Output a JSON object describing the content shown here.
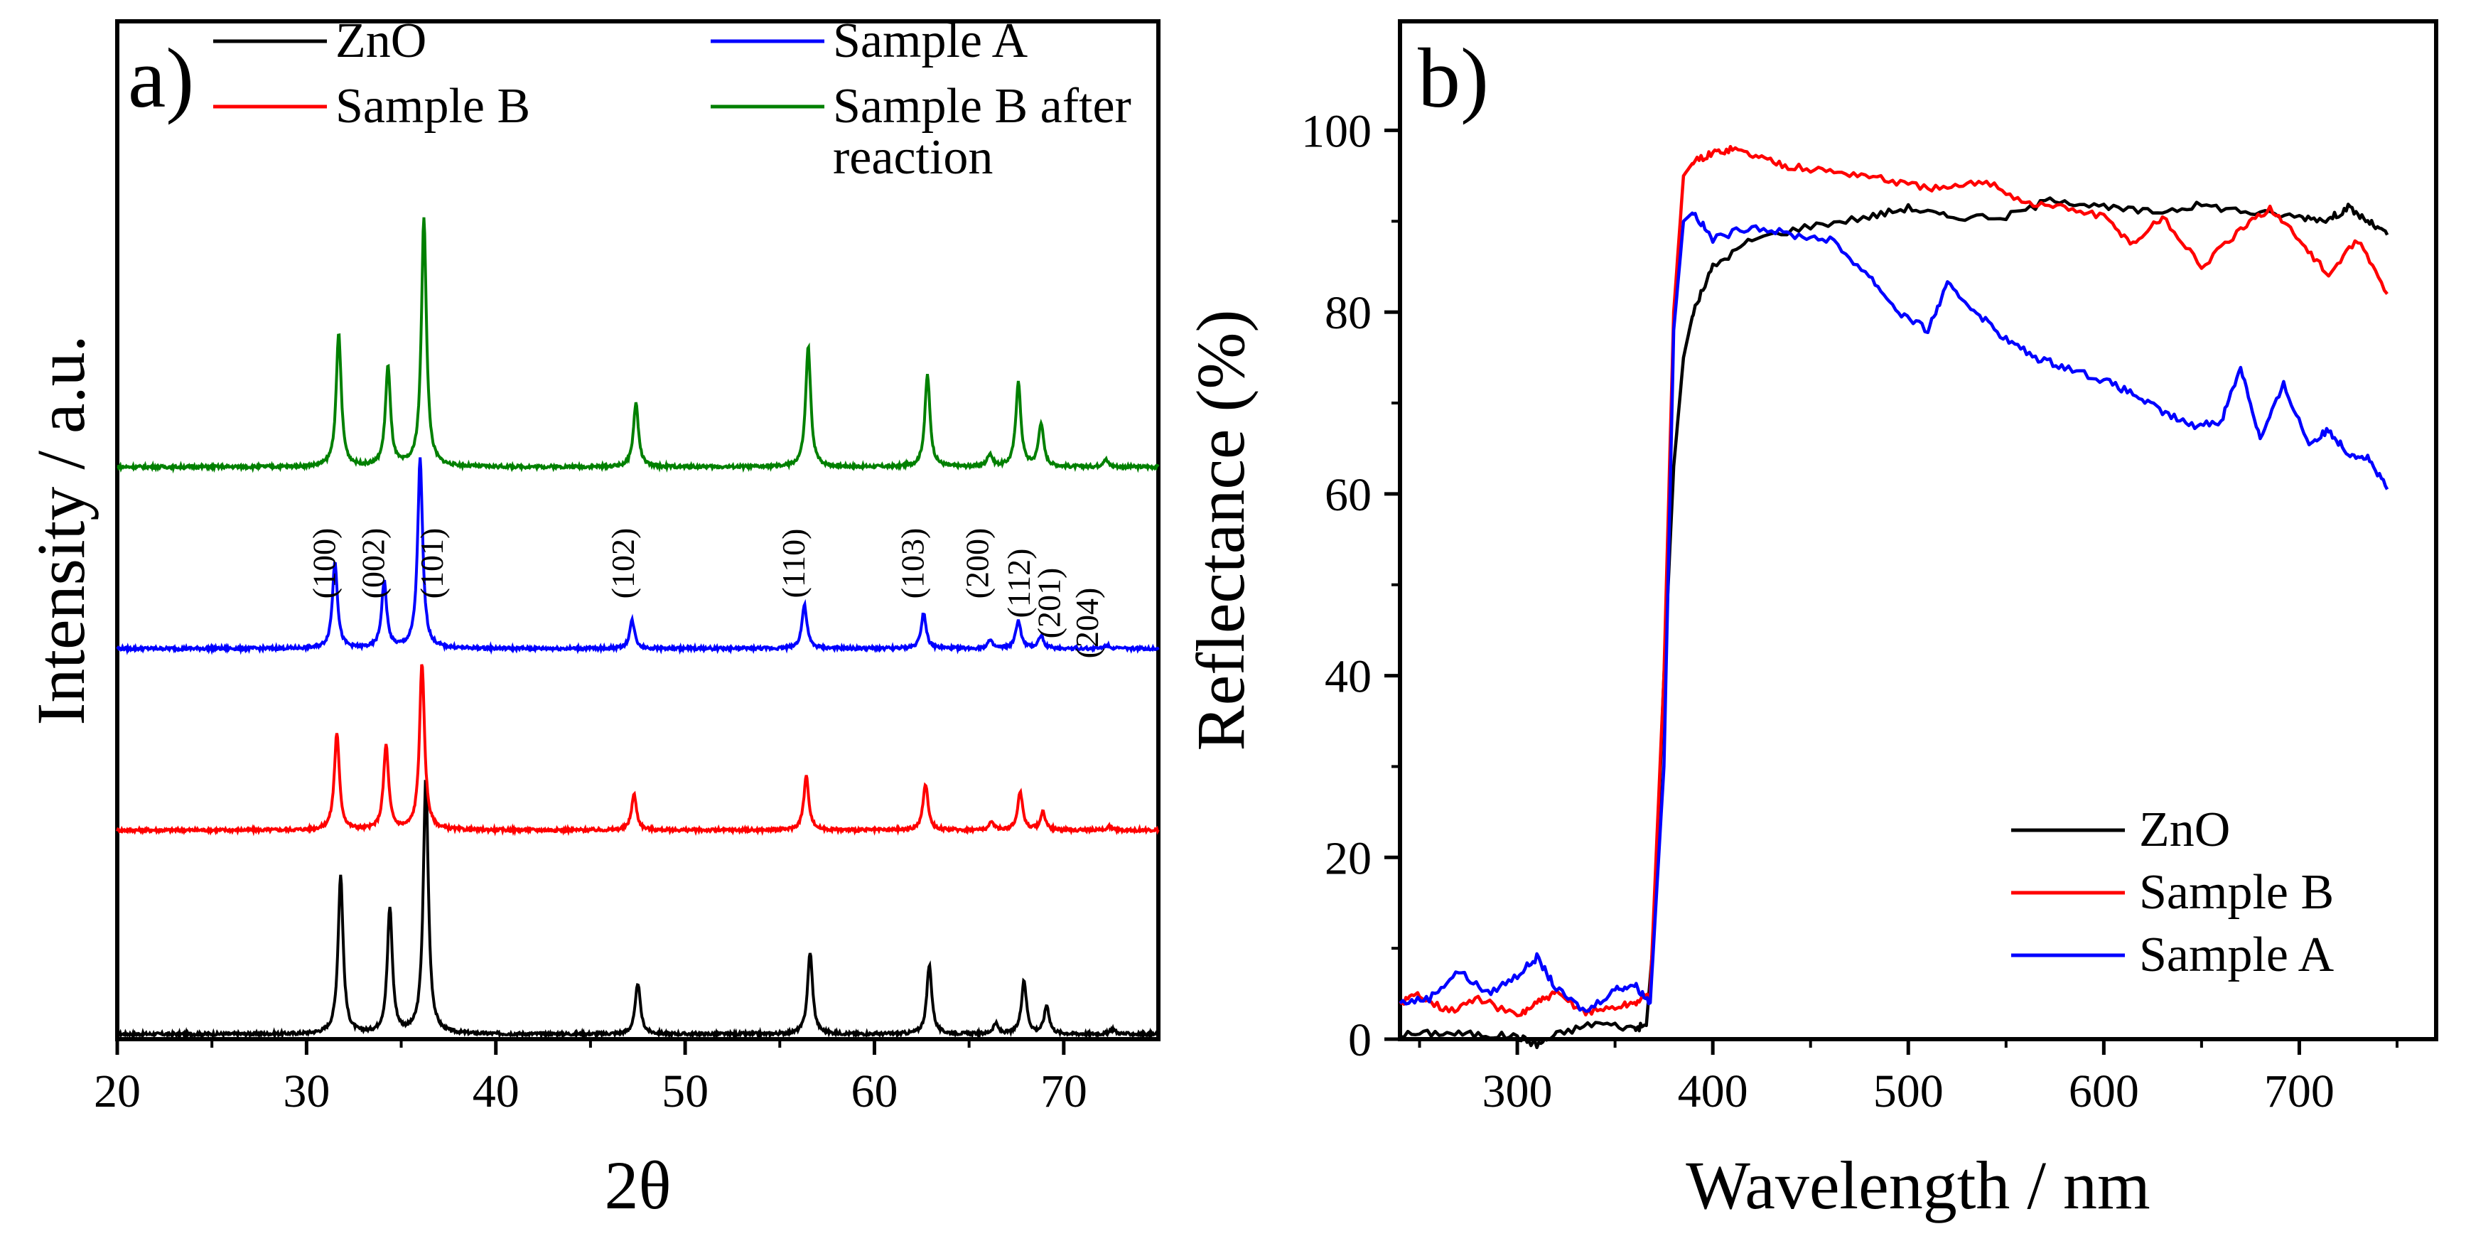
{
  "chart_data": [
    {
      "panel_label": "a)",
      "type": "line",
      "title": "",
      "xlabel": "2θ",
      "ylabel": "Intensity / a.u.",
      "xlim": [
        20,
        75
      ],
      "x_ticks": [
        20,
        30,
        40,
        50,
        60,
        70
      ],
      "y_ticks_shown": false,
      "legend_position": "top",
      "series": [
        {
          "name": "ZnO",
          "color": "#000000",
          "offset": 0,
          "peaks": [
            {
              "pos": 31.8,
              "height": 0.62
            },
            {
              "pos": 34.4,
              "height": 0.49
            },
            {
              "pos": 36.3,
              "height": 1.0
            },
            {
              "pos": 47.5,
              "height": 0.2
            },
            {
              "pos": 56.6,
              "height": 0.32
            },
            {
              "pos": 62.9,
              "height": 0.27
            },
            {
              "pos": 66.4,
              "height": 0.04
            },
            {
              "pos": 67.9,
              "height": 0.21
            },
            {
              "pos": 69.1,
              "height": 0.11
            },
            {
              "pos": 72.6,
              "height": 0.02
            }
          ]
        },
        {
          "name": "Sample B",
          "color": "#ff0000",
          "offset": 0.82,
          "peaks": [
            {
              "pos": 31.6,
              "height": 0.38
            },
            {
              "pos": 34.2,
              "height": 0.33
            },
            {
              "pos": 36.1,
              "height": 0.65
            },
            {
              "pos": 47.3,
              "height": 0.14
            },
            {
              "pos": 56.4,
              "height": 0.21
            },
            {
              "pos": 62.7,
              "height": 0.18
            },
            {
              "pos": 66.2,
              "height": 0.03
            },
            {
              "pos": 67.7,
              "height": 0.15
            },
            {
              "pos": 68.9,
              "height": 0.07
            },
            {
              "pos": 72.4,
              "height": 0.015
            }
          ]
        },
        {
          "name": "Sample A",
          "color": "#0000ff",
          "offset": 1.55,
          "peaks": [
            {
              "pos": 31.5,
              "height": 0.34
            },
            {
              "pos": 34.1,
              "height": 0.26
            },
            {
              "pos": 36.0,
              "height": 0.74
            },
            {
              "pos": 47.2,
              "height": 0.11
            },
            {
              "pos": 56.3,
              "height": 0.17
            },
            {
              "pos": 62.6,
              "height": 0.14
            },
            {
              "pos": 66.1,
              "height": 0.03
            },
            {
              "pos": 67.6,
              "height": 0.11
            },
            {
              "pos": 68.8,
              "height": 0.05
            },
            {
              "pos": 72.3,
              "height": 0.015
            }
          ]
        },
        {
          "name": "Sample B after reaction",
          "color": "#008000",
          "offset": 2.28,
          "peaks": [
            {
              "pos": 31.7,
              "height": 0.52
            },
            {
              "pos": 34.3,
              "height": 0.39
            },
            {
              "pos": 36.2,
              "height": 0.97
            },
            {
              "pos": 47.4,
              "height": 0.25
            },
            {
              "pos": 56.5,
              "height": 0.47
            },
            {
              "pos": 62.8,
              "height": 0.36
            },
            {
              "pos": 66.1,
              "height": 0.05
            },
            {
              "pos": 67.6,
              "height": 0.33
            },
            {
              "pos": 68.8,
              "height": 0.17
            },
            {
              "pos": 72.2,
              "height": 0.03
            }
          ]
        }
      ],
      "annotations": [
        {
          "text": "(100)",
          "pos": 31.5
        },
        {
          "text": "(002)",
          "pos": 34.1
        },
        {
          "text": "(101)",
          "pos": 37.2
        },
        {
          "text": "(102)",
          "pos": 47.3
        },
        {
          "text": "(110)",
          "pos": 56.3
        },
        {
          "text": "(103)",
          "pos": 62.6
        },
        {
          "text": "(200)",
          "pos": 66.0
        },
        {
          "text": "(112)",
          "pos": 68.2
        },
        {
          "text": "(201)",
          "pos": 69.8
        },
        {
          "text": "(204)",
          "pos": 71.8
        }
      ]
    },
    {
      "panel_label": "b)",
      "type": "line",
      "title": "",
      "xlabel": "Wavelength / nm",
      "ylabel": "Reflectance (%)",
      "xlim": [
        240,
        770
      ],
      "ylim": [
        0,
        112
      ],
      "x_ticks": [
        300,
        400,
        500,
        600,
        700
      ],
      "y_ticks": [
        0,
        20,
        40,
        60,
        80,
        100
      ],
      "legend_position": "bottom-right",
      "series": [
        {
          "name": "ZnO",
          "color": "#000000",
          "x": [
            240,
            260,
            280,
            300,
            310,
            320,
            340,
            360,
            366,
            370,
            375,
            380,
            385,
            390,
            400,
            420,
            450,
            480,
            500,
            520,
            550,
            575,
            600,
            625,
            650,
            675,
            700,
            715,
            725,
            735,
            745
          ],
          "y": [
            0.5,
            0.7,
            0.5,
            0.3,
            -0.6,
            0.5,
            1.8,
            1.2,
            1.5,
            12,
            40,
            63,
            75,
            80,
            85,
            88,
            89.5,
            90.5,
            91.5,
            90.5,
            90.5,
            92.5,
            91.5,
            91,
            91.8,
            91,
            90.5,
            90.2,
            91.5,
            90,
            88.5
          ]
        },
        {
          "name": "Sample B",
          "color": "#ff0000",
          "x": [
            240,
            250,
            265,
            280,
            300,
            310,
            320,
            335,
            350,
            360,
            368,
            375,
            380,
            385,
            390,
            400,
            410,
            425,
            440,
            460,
            480,
            500,
            520,
            540,
            560,
            580,
            600,
            615,
            630,
            650,
            670,
            685,
            700,
            715,
            730,
            745
          ],
          "y": [
            4,
            5,
            3,
            4.5,
            2.5,
            4,
            5,
            3,
            3.5,
            4,
            5,
            40,
            80,
            95,
            96.5,
            97.5,
            98,
            97,
            96,
            95.5,
            95,
            94,
            93.5,
            94.5,
            92,
            91.5,
            90.5,
            87.5,
            90.5,
            85,
            89,
            91.5,
            88,
            84,
            88,
            82
          ]
        },
        {
          "name": "Sample A",
          "color": "#0000ff",
          "x": [
            240,
            255,
            270,
            285,
            300,
            310,
            320,
            335,
            350,
            360,
            368,
            375,
            380,
            385,
            390,
            400,
            420,
            440,
            460,
            480,
            495,
            510,
            520,
            535,
            550,
            565,
            580,
            600,
            615,
            630,
            645,
            660,
            670,
            680,
            692,
            705,
            715,
            725,
            735,
            745
          ],
          "y": [
            4,
            4.5,
            7.5,
            5,
            7,
            9,
            5.5,
            3,
            5.5,
            6,
            4,
            30,
            78,
            90,
            91,
            88,
            89.5,
            88.5,
            88,
            84,
            80,
            78,
            83,
            80,
            77,
            75,
            74,
            72.5,
            71,
            69,
            67.5,
            68,
            74,
            66,
            72,
            65.5,
            67,
            64.5,
            64,
            60.5
          ]
        }
      ]
    }
  ]
}
